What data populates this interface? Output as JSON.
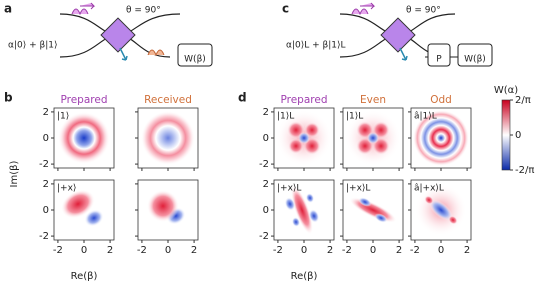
{
  "panel_labels": [
    "a",
    "b",
    "c",
    "d"
  ],
  "diagram_a": {
    "theta": "θ = 90°",
    "input": "α|0⟩ + β|1⟩",
    "box": "W(β)"
  },
  "diagram_c": {
    "theta": "θ = 90°",
    "input": "α|0⟩L + β|1⟩L",
    "boxes": [
      "P",
      "W(β)"
    ]
  },
  "panel_b": {
    "columns": [
      "Prepared",
      "Received"
    ],
    "cells": [
      [
        "|1⟩",
        ""
      ],
      [
        "|+x⟩",
        ""
      ]
    ],
    "xlabel": "Re(β)",
    "ylabel": "Im(β)",
    "xlim": [
      -2.3,
      2.3
    ],
    "ylim": [
      -2.3,
      2.3
    ],
    "xticks": [
      -2,
      0,
      2
    ],
    "yticks": [
      2,
      0,
      -2
    ]
  },
  "panel_d": {
    "columns": [
      "Prepared",
      "Even",
      "Odd"
    ],
    "cells": [
      [
        "|1⟩L",
        "|1⟩L",
        "â|1⟩L"
      ],
      [
        "|+x⟩L",
        "|+x⟩L",
        "â|+x⟩L"
      ]
    ],
    "xlabel": "Re(β)",
    "xlim": [
      -2.3,
      2.3
    ],
    "ylim": [
      -2.3,
      2.3
    ],
    "xticks": [
      -2,
      0,
      2
    ],
    "yticks": [
      2,
      0,
      -2
    ]
  },
  "colorbar": {
    "title": "W(α)",
    "lim": [
      -0.6366,
      0.6366
    ],
    "ticks": [
      {
        "value": 0.6366,
        "label": "2/π"
      },
      0,
      {
        "value": -0.6366,
        "label": "-2/π"
      }
    ]
  }
}
